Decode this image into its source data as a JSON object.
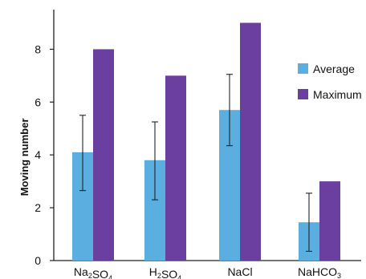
{
  "chart_data": {
    "type": "bar",
    "ylabel": "Moving number",
    "xlabel": "",
    "ylim": [
      0,
      9.5
    ],
    "yticks": [
      0,
      2,
      4,
      6,
      8
    ],
    "grid": false,
    "legend_position": "right",
    "categories": [
      {
        "base": "Na",
        "sub1": "2",
        "mid": "SO",
        "sub2": "4"
      },
      {
        "base": "H",
        "sub1": "2",
        "mid": "SO",
        "sub2": "4"
      },
      {
        "base": "NaCl",
        "sub1": "",
        "mid": "",
        "sub2": ""
      },
      {
        "base": "NaHCO",
        "sub1": "3",
        "mid": "",
        "sub2": ""
      }
    ],
    "series": [
      {
        "name": "Average",
        "color": "#5aafe0",
        "values": [
          4.1,
          3.8,
          5.7,
          1.45
        ],
        "error_low": [
          2.65,
          2.3,
          4.35,
          0.35
        ],
        "error_high": [
          5.5,
          5.25,
          7.05,
          2.55
        ]
      },
      {
        "name": "Maximum",
        "color": "#6a3fa0",
        "values": [
          8,
          7,
          9,
          3
        ]
      }
    ]
  }
}
